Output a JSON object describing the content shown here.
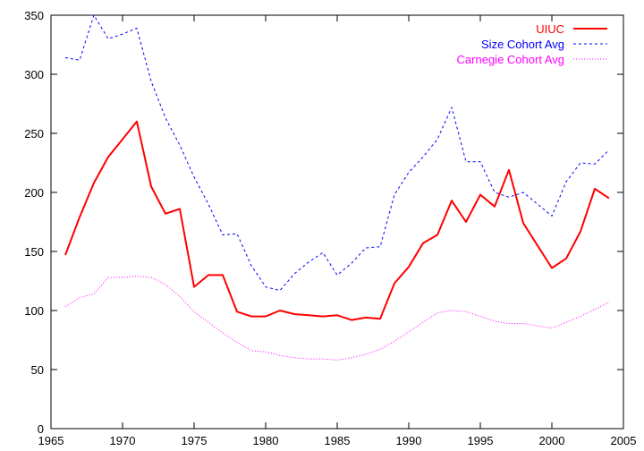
{
  "chart_data": {
    "type": "line",
    "title": "",
    "xlabel": "",
    "ylabel": "",
    "xlim": [
      1965,
      2005
    ],
    "ylim": [
      0,
      350
    ],
    "x_ticks": [
      1965,
      1970,
      1975,
      1980,
      1985,
      1990,
      1995,
      2000,
      2005
    ],
    "y_ticks": [
      0,
      50,
      100,
      150,
      200,
      250,
      300,
      350
    ],
    "x_tick_labels": [
      "1965",
      "1970",
      "1975",
      "1980",
      "1985",
      "1990",
      "1995",
      "2000",
      "2005"
    ],
    "y_tick_labels": [
      "0",
      "50",
      "100",
      "150",
      "200",
      "250",
      "300",
      "350"
    ],
    "grid": false,
    "legend_position": "top-right",
    "series": [
      {
        "name": "UIUC",
        "color": "#ff0000",
        "style": "solid",
        "x": [
          1966,
          1967,
          1968,
          1969,
          1970,
          1971,
          1972,
          1973,
          1974,
          1975,
          1976,
          1977,
          1978,
          1979,
          1980,
          1981,
          1982,
          1983,
          1984,
          1985,
          1986,
          1987,
          1988,
          1989,
          1990,
          1991,
          1992,
          1993,
          1994,
          1995,
          1996,
          1997,
          1998,
          1999,
          2000,
          2001,
          2002,
          2003,
          2004
        ],
        "values": [
          147,
          179,
          208,
          230,
          245,
          260,
          205,
          182,
          186,
          120,
          130,
          130,
          99,
          95,
          95,
          100,
          97,
          96,
          95,
          96,
          92,
          94,
          93,
          123,
          137,
          157,
          164,
          193,
          175,
          198,
          188,
          219,
          174,
          155,
          136,
          144,
          167,
          203,
          195
        ]
      },
      {
        "name": "Size Cohort Avg",
        "color": "#0000ff",
        "style": "dashed",
        "x": [
          1966,
          1967,
          1968,
          1969,
          1970,
          1971,
          1972,
          1973,
          1974,
          1975,
          1976,
          1977,
          1978,
          1979,
          1980,
          1981,
          1982,
          1983,
          1984,
          1985,
          1986,
          1987,
          1988,
          1989,
          1990,
          1991,
          1992,
          1993,
          1994,
          1995,
          1996,
          1997,
          1998,
          1999,
          2000,
          2001,
          2002,
          2003,
          2004
        ],
        "values": [
          314,
          312,
          350,
          330,
          334,
          339,
          294,
          263,
          240,
          213,
          190,
          164,
          165,
          138,
          120,
          117,
          131,
          141,
          149,
          130,
          140,
          153,
          154,
          198,
          217,
          230,
          245,
          272,
          226,
          226,
          200,
          196,
          200,
          190,
          180,
          209,
          225,
          224,
          236
        ]
      },
      {
        "name": "Carnegie Cohort Avg",
        "color": "#ff00ff",
        "style": "dotted",
        "x": [
          1966,
          1967,
          1968,
          1969,
          1970,
          1971,
          1972,
          1973,
          1974,
          1975,
          1976,
          1977,
          1978,
          1979,
          1980,
          1981,
          1982,
          1983,
          1984,
          1985,
          1986,
          1987,
          1988,
          1989,
          1990,
          1991,
          1992,
          1993,
          1994,
          1995,
          1996,
          1997,
          1998,
          1999,
          2000,
          2001,
          2002,
          2003,
          2004
        ],
        "values": [
          103,
          111,
          114,
          128,
          128,
          129,
          128,
          122,
          112,
          99,
          90,
          81,
          73,
          66,
          65,
          62,
          60,
          59,
          59,
          58,
          60,
          63,
          67,
          74,
          82,
          90,
          98,
          100,
          99,
          95,
          91,
          89,
          89,
          87,
          85,
          90,
          95,
          101,
          107
        ]
      }
    ]
  }
}
